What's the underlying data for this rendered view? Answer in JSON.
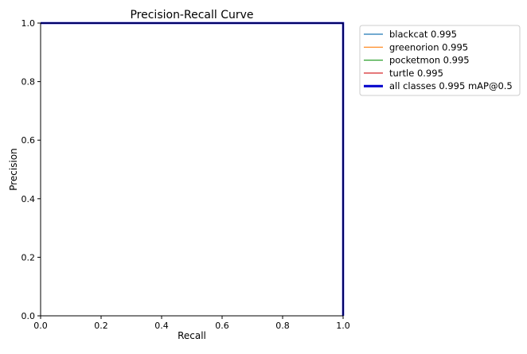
{
  "chart_data": {
    "type": "line",
    "title": "Precision-Recall Curve",
    "xlabel": "Recall",
    "ylabel": "Precision",
    "xlim": [
      0.0,
      1.0
    ],
    "ylim": [
      0.0,
      1.0
    ],
    "xticks": [
      "0.0",
      "0.2",
      "0.4",
      "0.6",
      "0.8",
      "1.0"
    ],
    "yticks": [
      "0.0",
      "0.2",
      "0.4",
      "0.6",
      "0.8",
      "1.0"
    ],
    "grid": false,
    "legend_position": "outside-top-right",
    "series": [
      {
        "name": "blackcat 0.995",
        "color": "#1f77b4",
        "x": [
          0.0,
          0.995,
          1.0,
          1.0
        ],
        "y": [
          1.0,
          1.0,
          1.0,
          0.0
        ]
      },
      {
        "name": "greenorion 0.995",
        "color": "#ff7f0e",
        "x": [
          0.0,
          0.995,
          1.0,
          1.0
        ],
        "y": [
          1.0,
          1.0,
          1.0,
          0.0
        ]
      },
      {
        "name": "pocketmon 0.995",
        "color": "#2ca02c",
        "x": [
          0.0,
          0.995,
          1.0,
          1.0
        ],
        "y": [
          1.0,
          1.0,
          1.0,
          0.0
        ]
      },
      {
        "name": "turtle 0.995",
        "color": "#d62728",
        "x": [
          0.0,
          0.995,
          1.0,
          1.0
        ],
        "y": [
          1.0,
          1.0,
          1.0,
          0.0
        ]
      },
      {
        "name": "all classes 0.995 mAP@0.5",
        "color": "#0000cc",
        "x": [
          0.0,
          0.995,
          1.0,
          1.0
        ],
        "y": [
          1.0,
          1.0,
          1.0,
          0.0
        ]
      }
    ]
  }
}
